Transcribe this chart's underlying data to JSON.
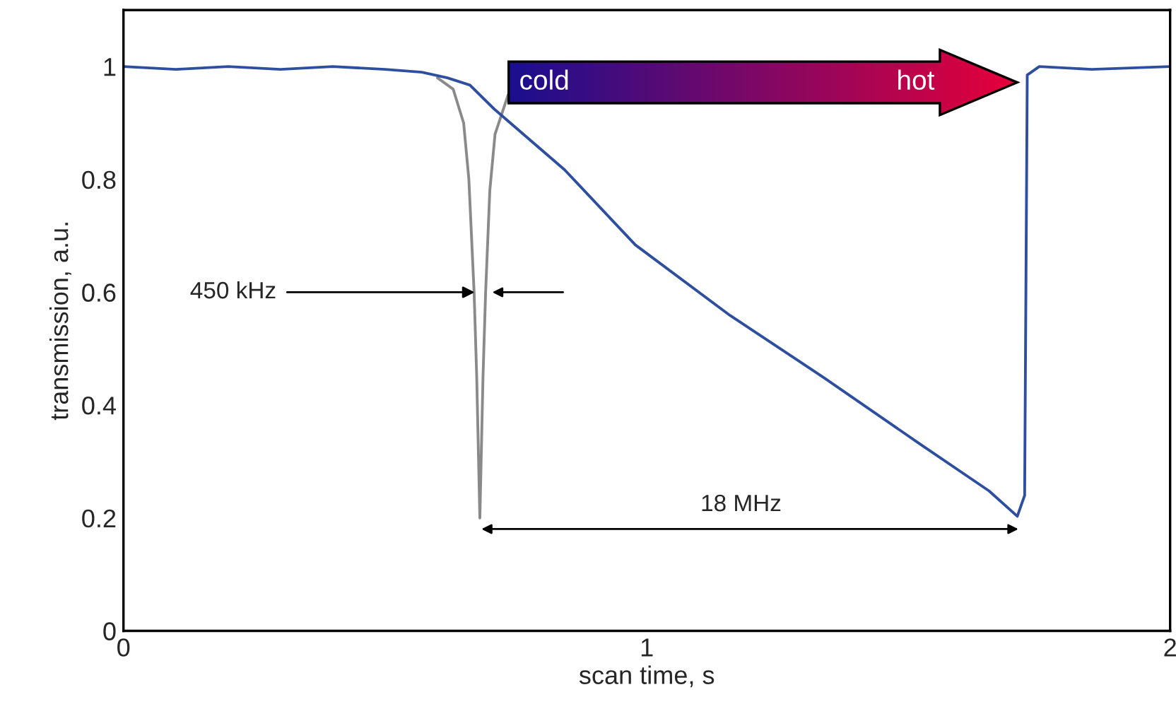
{
  "chart_data": {
    "type": "line",
    "xlabel": "scan time, s",
    "ylabel": "transmission, a.u.",
    "xlim": [
      0,
      2
    ],
    "ylim": [
      0,
      1.1
    ],
    "xticks": [
      0,
      1,
      2
    ],
    "yticks": [
      0,
      0.2,
      0.4,
      0.6,
      0.8,
      1
    ],
    "grid": false,
    "legend": false,
    "marker": "none",
    "line_style": "solid",
    "series": [
      {
        "color": "#2e4fa0",
        "x": [
          0,
          0.1,
          0.2,
          0.3,
          0.4,
          0.5,
          0.57,
          0.619,
          0.662,
          0.708,
          0.843,
          0.978,
          1.159,
          1.338,
          1.519,
          1.654,
          1.708,
          1.722,
          1.727,
          1.75,
          1.85,
          2
        ],
        "values": [
          1,
          0.995,
          1,
          0.995,
          1,
          0.995,
          0.99,
          0.98,
          0.967,
          0.925,
          0.817,
          0.684,
          0.559,
          0.449,
          0.333,
          0.248,
          0.203,
          0.24,
          0.985,
          1,
          0.995,
          1
        ]
      },
      {
        "color": "#8a8a8a",
        "x": [
          0.6,
          0.63,
          0.65,
          0.66,
          0.67,
          0.675,
          0.681,
          0.687,
          0.692,
          0.7,
          0.71,
          0.735
        ],
        "values": [
          0.98,
          0.96,
          0.9,
          0.8,
          0.6,
          0.45,
          0.2,
          0.45,
          0.6,
          0.78,
          0.88,
          0.95
        ]
      }
    ],
    "annotations": [
      {
        "text": "450 kHz",
        "x": 0.671,
        "y": 0.6
      },
      "18 MHz",
      "cold",
      "hot"
    ]
  }
}
